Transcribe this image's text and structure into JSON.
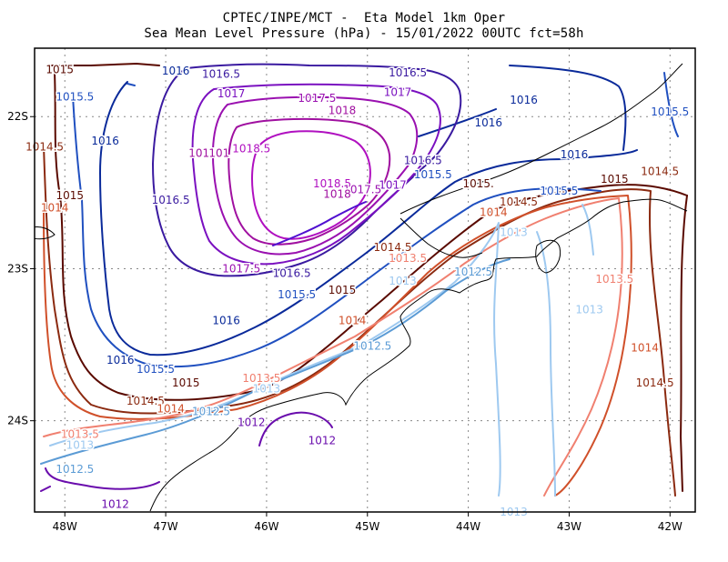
{
  "title_line1": "CPTEC/INPE/MCT -  Eta Model 1km Oper",
  "title_line2": "Sea Mean Level Pressure (hPa) - 15/01/2022 00UTC fct=58h",
  "colors": {
    "c1012": "#6a0dad",
    "c1012_5": "#5b9bd5",
    "c1013": "#9ec9f0",
    "c1013_5": "#f08070",
    "c1014": "#d0502a",
    "c1014_5": "#8b2a10",
    "c1015": "#5a0a00",
    "c1015_5": "#2050c0",
    "c1016": "#0a2a9a",
    "c1016_5": "#3a1aa0",
    "c1017": "#7a10c0",
    "c1017_5": "#9a10b0",
    "c1018": "#a010a0",
    "c1018_5": "#b010c0",
    "coast": "#000000",
    "grid": "#888888"
  },
  "map": {
    "lon_ticks": [
      "48W",
      "47W",
      "46W",
      "45W",
      "44W",
      "43W",
      "42W"
    ],
    "lat_ticks": [
      "22S",
      "23S",
      "24S"
    ],
    "lon_range": [
      -48.3,
      -41.75
    ],
    "lat_range": [
      -24.6,
      -21.55
    ]
  },
  "contour_labels": [
    {
      "text": "1015",
      "lon": -48.05,
      "lat": -21.69,
      "color": "c1015"
    },
    {
      "text": "1016",
      "lon": -46.9,
      "lat": -21.7,
      "color": "c1016"
    },
    {
      "text": "1016.5",
      "lon": -46.45,
      "lat": -21.72,
      "color": "c1016_5"
    },
    {
      "text": "1016.5",
      "lon": -44.6,
      "lat": -21.71,
      "color": "c1016_5"
    },
    {
      "text": "1015.5",
      "lon": -47.9,
      "lat": -21.87,
      "color": "c1015_5"
    },
    {
      "text": "1017",
      "lon": -46.35,
      "lat": -21.85,
      "color": "c1017"
    },
    {
      "text": "1017",
      "lon": -44.7,
      "lat": -21.84,
      "color": "c1017"
    },
    {
      "text": "1017.5",
      "lon": -45.5,
      "lat": -21.88,
      "color": "c1017_5"
    },
    {
      "text": "1016",
      "lon": -43.45,
      "lat": -21.89,
      "color": "c1016"
    },
    {
      "text": "1018",
      "lon": -45.25,
      "lat": -21.96,
      "color": "c1018"
    },
    {
      "text": "1016",
      "lon": -43.8,
      "lat": -22.04,
      "color": "c1016"
    },
    {
      "text": "1015.5",
      "lon": -42.0,
      "lat": -21.97,
      "color": "c1015_5"
    },
    {
      "text": "1016",
      "lon": -47.6,
      "lat": -22.16,
      "color": "c1016"
    },
    {
      "text": "1014.5",
      "lon": -48.2,
      "lat": -22.2,
      "color": "c1014_5"
    },
    {
      "text": "1018.5",
      "lon": -46.15,
      "lat": -22.21,
      "color": "c1018_5"
    },
    {
      "text": "101",
      "lon": -46.67,
      "lat": -22.24,
      "color": "c1018"
    },
    {
      "text": "101",
      "lon": -46.47,
      "lat": -22.24,
      "color": "c1018"
    },
    {
      "text": "1016",
      "lon": -42.95,
      "lat": -22.25,
      "color": "c1016"
    },
    {
      "text": "1016.5",
      "lon": -44.45,
      "lat": -22.29,
      "color": "c1016_5"
    },
    {
      "text": "1015.5",
      "lon": -44.35,
      "lat": -22.38,
      "color": "c1015_5"
    },
    {
      "text": "1014.5",
      "lon": -42.1,
      "lat": -22.36,
      "color": "c1014_5"
    },
    {
      "text": "1015",
      "lon": -42.55,
      "lat": -22.41,
      "color": "c1015"
    },
    {
      "text": "1018.5",
      "lon": -45.35,
      "lat": -22.44,
      "color": "c1018_5"
    },
    {
      "text": "1015.",
      "lon": -43.9,
      "lat": -22.44,
      "color": "c1015"
    },
    {
      "text": "1017",
      "lon": -44.75,
      "lat": -22.45,
      "color": "c1017"
    },
    {
      "text": "1017.5",
      "lon": -45.05,
      "lat": -22.48,
      "color": "c1017_5"
    },
    {
      "text": "1018",
      "lon": -45.3,
      "lat": -22.51,
      "color": "c1018"
    },
    {
      "text": "1015.5",
      "lon": -43.1,
      "lat": -22.49,
      "color": "c1015_5"
    },
    {
      "text": "1014.5",
      "lon": -43.5,
      "lat": -22.56,
      "color": "c1014_5"
    },
    {
      "text": "1015",
      "lon": -47.95,
      "lat": -22.52,
      "color": "c1015"
    },
    {
      "text": "1016.5",
      "lon": -46.95,
      "lat": -22.55,
      "color": "c1016_5"
    },
    {
      "text": "1014",
      "lon": -48.1,
      "lat": -22.6,
      "color": "c1014"
    },
    {
      "text": "1014",
      "lon": -43.75,
      "lat": -22.63,
      "color": "c1014"
    },
    {
      "text": "1013",
      "lon": -43.55,
      "lat": -22.76,
      "color": "c1013"
    },
    {
      "text": "1014.5",
      "lon": -44.75,
      "lat": -22.86,
      "color": "c1014_5"
    },
    {
      "text": "1013.5",
      "lon": -44.6,
      "lat": -22.93,
      "color": "c1013_5"
    },
    {
      "text": "1017.5",
      "lon": -46.25,
      "lat": -23.0,
      "color": "c1017_5"
    },
    {
      "text": "1016.5",
      "lon": -45.75,
      "lat": -23.03,
      "color": "c1016_5"
    },
    {
      "text": "1012.5",
      "lon": -43.95,
      "lat": -23.02,
      "color": "c1012_5"
    },
    {
      "text": "1013.5",
      "lon": -42.55,
      "lat": -23.07,
      "color": "c1013_5"
    },
    {
      "text": "1013",
      "lon": -44.65,
      "lat": -23.08,
      "color": "c1013"
    },
    {
      "text": "1015",
      "lon": -45.25,
      "lat": -23.14,
      "color": "c1015"
    },
    {
      "text": "1015.5",
      "lon": -45.7,
      "lat": -23.17,
      "color": "c1015_5"
    },
    {
      "text": "1013",
      "lon": -42.8,
      "lat": -23.27,
      "color": "c1013"
    },
    {
      "text": "1016",
      "lon": -46.4,
      "lat": -23.34,
      "color": "c1016"
    },
    {
      "text": "1014",
      "lon": -45.15,
      "lat": -23.34,
      "color": "c1014"
    },
    {
      "text": "1012.5",
      "lon": -44.95,
      "lat": -23.51,
      "color": "c1012_5"
    },
    {
      "text": "1014",
      "lon": -42.25,
      "lat": -23.52,
      "color": "c1014"
    },
    {
      "text": "1016",
      "lon": -47.45,
      "lat": -23.6,
      "color": "c1016"
    },
    {
      "text": "1015.5",
      "lon": -47.1,
      "lat": -23.66,
      "color": "c1015_5"
    },
    {
      "text": "1015",
      "lon": -46.8,
      "lat": -23.75,
      "color": "c1015"
    },
    {
      "text": "1014.5",
      "lon": -42.15,
      "lat": -23.75,
      "color": "c1014_5"
    },
    {
      "text": "1013.5",
      "lon": -46.05,
      "lat": -23.72,
      "color": "c1013_5"
    },
    {
      "text": "1013",
      "lon": -46.0,
      "lat": -23.79,
      "color": "c1013"
    },
    {
      "text": "1014.5",
      "lon": -47.2,
      "lat": -23.87,
      "color": "c1014_5"
    },
    {
      "text": "1014",
      "lon": -46.95,
      "lat": -23.92,
      "color": "c1014"
    },
    {
      "text": "1012.5",
      "lon": -46.55,
      "lat": -23.94,
      "color": "c1012_5"
    },
    {
      "text": "1012",
      "lon": -46.15,
      "lat": -24.01,
      "color": "c1012"
    },
    {
      "text": "1013.5",
      "lon": -47.85,
      "lat": -24.09,
      "color": "c1013_5"
    },
    {
      "text": "1012",
      "lon": -45.45,
      "lat": -24.13,
      "color": "c1012"
    },
    {
      "text": "1013",
      "lon": -47.85,
      "lat": -24.16,
      "color": "c1013"
    },
    {
      "text": "1012.5",
      "lon": -47.9,
      "lat": -24.32,
      "color": "c1012_5"
    },
    {
      "text": "1012",
      "lon": -47.5,
      "lat": -24.55,
      "color": "c1012"
    },
    {
      "text": "1013",
      "lon": -43.55,
      "lat": -24.6,
      "color": "c1013"
    }
  ]
}
